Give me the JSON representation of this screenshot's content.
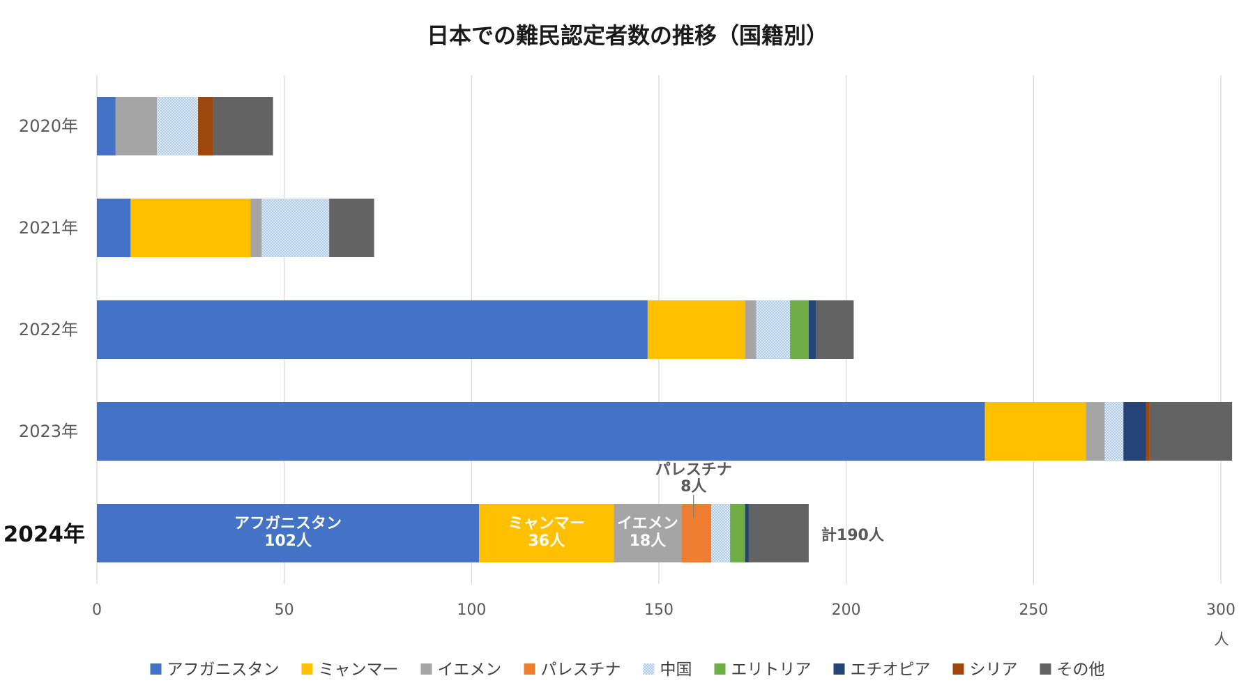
{
  "chart_data": {
    "type": "bar",
    "orientation": "horizontal",
    "stacked": true,
    "title": "日本での難民認定者数の推移（国籍別）",
    "categories": [
      "2020年",
      "2021年",
      "2022年",
      "2023年",
      "2024年"
    ],
    "highlight_category": "2024年",
    "xlim": [
      0,
      300
    ],
    "xticks": [
      0,
      50,
      100,
      150,
      200,
      250,
      300
    ],
    "xunit": "人",
    "grid": "vertical",
    "legend_position": "bottom",
    "series": [
      {
        "name": "アフガニスタン",
        "color": "#4472C4",
        "pattern": "solid",
        "values": [
          5,
          9,
          147,
          237,
          102
        ]
      },
      {
        "name": "ミャンマー",
        "color": "#FFC000",
        "pattern": "solid",
        "values": [
          0,
          32,
          26,
          27,
          36
        ]
      },
      {
        "name": "イエメン",
        "color": "#A5A5A5",
        "pattern": "solid",
        "values": [
          11,
          3,
          3,
          5,
          18
        ]
      },
      {
        "name": "パレスチナ",
        "color": "#ED7D31",
        "pattern": "solid",
        "values": [
          0,
          0,
          0,
          0,
          8
        ]
      },
      {
        "name": "中国",
        "color": "#BDD7EE",
        "pattern": "dots",
        "values": [
          11,
          18,
          9,
          5,
          5
        ]
      },
      {
        "name": "エリトリア",
        "color": "#70AD47",
        "pattern": "solid",
        "values": [
          0,
          0,
          5,
          0,
          4
        ]
      },
      {
        "name": "エチオピア",
        "color": "#264478",
        "pattern": "solid",
        "values": [
          0,
          0,
          2,
          6,
          1
        ]
      },
      {
        "name": "シリア",
        "color": "#9E480E",
        "pattern": "solid",
        "values": [
          4,
          0,
          0,
          1,
          0
        ]
      },
      {
        "name": "その他",
        "color": "#636363",
        "pattern": "solid",
        "values": [
          16,
          12,
          10,
          22,
          16
        ]
      }
    ],
    "annotations": [
      {
        "category": "2024年",
        "series": "アフガニスタン",
        "lines": [
          "アフガニスタン",
          "102人"
        ],
        "placement": "inside"
      },
      {
        "category": "2024年",
        "series": "ミャンマー",
        "lines": [
          "ミャンマー",
          "36人"
        ],
        "placement": "inside"
      },
      {
        "category": "2024年",
        "series": "イエメン",
        "lines": [
          "イエメン",
          "18人"
        ],
        "placement": "inside"
      },
      {
        "category": "2024年",
        "series": "パレスチナ",
        "lines": [
          "パレスチナ",
          "8人"
        ],
        "placement": "above"
      }
    ],
    "total_label": {
      "category": "2024年",
      "text": "計190人"
    }
  }
}
